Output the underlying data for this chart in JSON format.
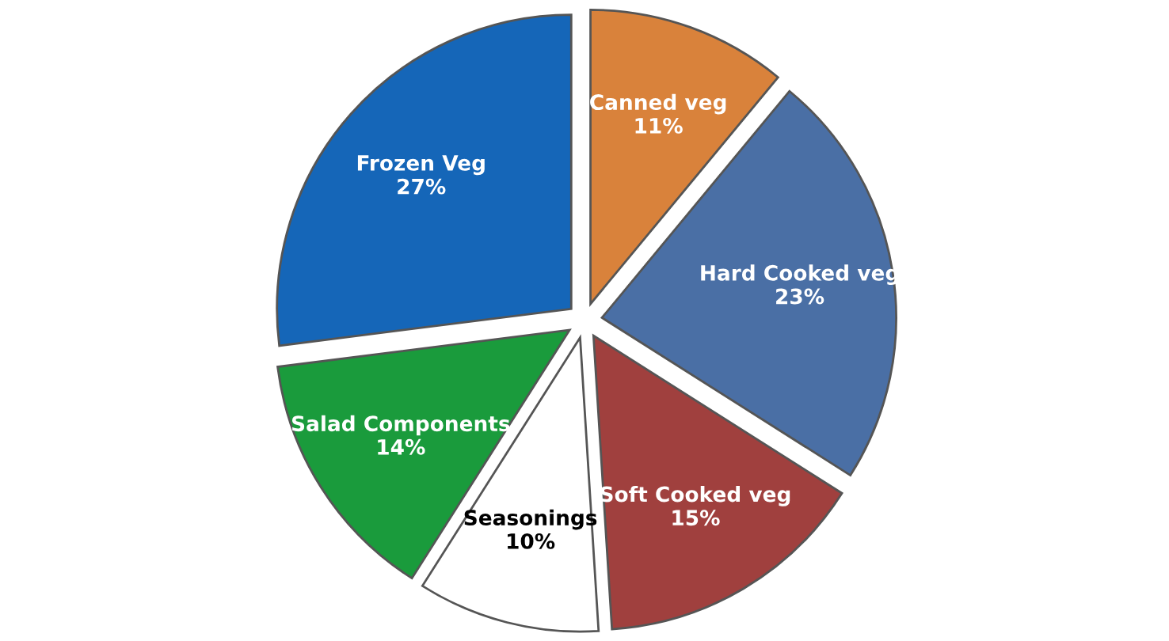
{
  "chart_data": {
    "type": "pie",
    "categories": [
      "Canned veg",
      "Hard Cooked veg",
      "Soft Cooked veg",
      "Seasonings",
      "Salad Components",
      "Frozen Veg"
    ],
    "values": [
      11,
      23,
      15,
      10,
      14,
      27
    ],
    "colors": [
      "#d9823b",
      "#4a6fa5",
      "#a0403e",
      "#ffffff",
      "#1a9b3c",
      "#1566b8"
    ],
    "value_labels": [
      "11%",
      "23%",
      "15%",
      "10%",
      "14%",
      "27%"
    ]
  }
}
